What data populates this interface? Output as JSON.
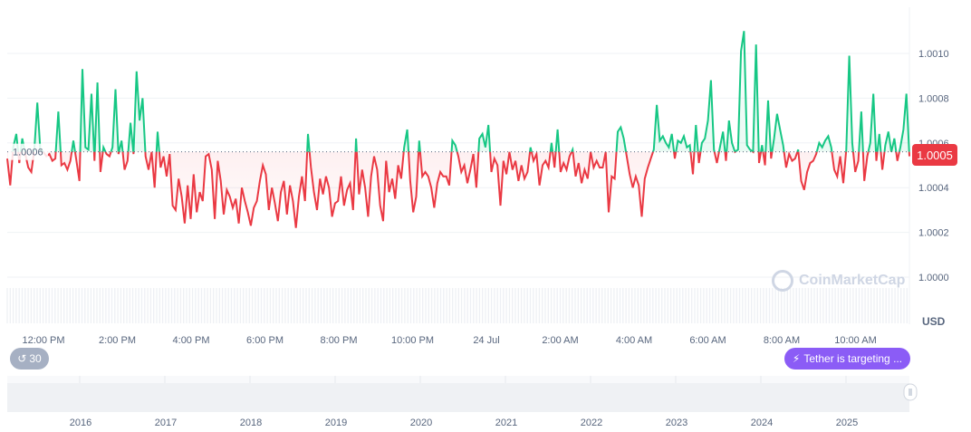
{
  "chart_data": {
    "type": "line",
    "baseline": 1.00056,
    "baseline_label": "1.0006",
    "current_price_label": "1.0005",
    "currency": "USD",
    "ylim": [
      0.99982,
      1.00114
    ],
    "yticks": [
      "1.0000",
      "1.0002",
      "1.0004",
      "1.0006",
      "1.0008",
      "1.0010"
    ],
    "ytick_values": [
      1.0,
      1.0002,
      1.0004,
      1.0006,
      1.0008,
      1.001
    ],
    "xticks": [
      "12:00 PM",
      "2:00 PM",
      "4:00 PM",
      "6:00 PM",
      "8:00 PM",
      "10:00 PM",
      "24 Jul",
      "2:00 AM",
      "4:00 AM",
      "6:00 AM",
      "8:00 AM",
      "10:00 AM"
    ],
    "nav_years": [
      "2016",
      "2017",
      "2018",
      "2019",
      "2020",
      "2021",
      "2022",
      "2023",
      "2024",
      "2025"
    ],
    "grid": true,
    "colors": {
      "up": "#16c784",
      "down": "#ea3943",
      "nav_handle": "#ffffff",
      "badge": "#8b5cf6",
      "history": "#a6b0c3"
    },
    "values": [
      1.00053,
      1.00041,
      1.00058,
      1.00064,
      1.00051,
      1.00062,
      1.00055,
      1.00049,
      1.00047,
      1.00057,
      1.00078,
      1.00057,
      1.00056,
      1.00054,
      1.00055,
      1.00052,
      1.00053,
      1.00074,
      1.0005,
      1.00051,
      1.00048,
      1.00052,
      1.00061,
      1.00052,
      1.00043,
      1.00093,
      1.00058,
      1.00057,
      1.00082,
      1.00052,
      1.00087,
      1.00047,
      1.00058,
      1.00055,
      1.00054,
      1.00058,
      1.00084,
      1.00055,
      1.00061,
      1.00048,
      1.00052,
      1.00069,
      1.00055,
      1.00092,
      1.0007,
      1.0008,
      1.00054,
      1.00048,
      1.00056,
      1.0004,
      1.00065,
      1.00049,
      1.00054,
      1.00045,
      1.00055,
      1.00032,
      1.0003,
      1.00044,
      1.00036,
      1.00024,
      1.00041,
      1.00026,
      1.00046,
      1.00029,
      1.00038,
      1.00034,
      1.00054,
      1.00055,
      1.00048,
      1.00026,
      1.00052,
      1.00043,
      1.00028,
      1.00039,
      1.00036,
      1.00031,
      1.00035,
      1.00024,
      1.0004,
      1.00034,
      1.00029,
      1.00023,
      1.00031,
      1.00034,
      1.00043,
      1.0005,
      1.00046,
      1.0003,
      1.0004,
      1.00033,
      1.00025,
      1.00038,
      1.00043,
      1.00028,
      1.00041,
      1.00034,
      1.00022,
      1.00036,
      1.00045,
      1.00034,
      1.00064,
      1.00049,
      1.00038,
      1.0003,
      1.00044,
      1.00037,
      1.00045,
      1.0004,
      1.00027,
      1.00033,
      1.00034,
      1.00045,
      1.00032,
      1.00039,
      1.00042,
      1.0003,
      1.00062,
      1.00037,
      1.00048,
      1.0004,
      1.00027,
      1.00045,
      1.00054,
      1.00048,
      1.00032,
      1.00025,
      1.00052,
      1.00038,
      1.00044,
      1.00035,
      1.0005,
      1.00044,
      1.00058,
      1.00066,
      1.00043,
      1.00029,
      1.00036,
      1.00061,
      1.00045,
      1.00047,
      1.00045,
      1.0004,
      1.00031,
      1.00042,
      1.00047,
      1.00045,
      1.00045,
      1.00041,
      1.00061,
      1.00059,
      1.00054,
      1.00047,
      1.0005,
      1.00042,
      1.00048,
      1.00055,
      1.0004,
      1.00062,
      1.00064,
      1.00058,
      1.00068,
      1.00047,
      1.00053,
      1.0005,
      1.00032,
      1.00052,
      1.00046,
      1.00056,
      1.00048,
      1.00052,
      1.00043,
      1.0005,
      1.00044,
      1.00047,
      1.00058,
      1.00052,
      1.00055,
      1.00041,
      1.0005,
      1.00052,
      1.00049,
      1.0006,
      1.00049,
      1.00066,
      1.00047,
      1.00051,
      1.00048,
      1.00054,
      1.00057,
      1.00045,
      1.00051,
      1.00042,
      1.00048,
      1.00044,
      1.00056,
      1.00049,
      1.00052,
      1.00049,
      1.00049,
      1.00056,
      1.00029,
      1.00045,
      1.00044,
      1.00065,
      1.00067,
      1.00062,
      1.00054,
      1.00046,
      1.0004,
      1.00045,
      1.00041,
      1.00027,
      1.00044,
      1.00049,
      1.00053,
      1.00057,
      1.00077,
      1.00061,
      1.00063,
      1.0006,
      1.00058,
      1.00064,
      1.00053,
      1.00061,
      1.0006,
      1.00063,
      1.00058,
      1.00059,
      1.00046,
      1.00068,
      1.00051,
      1.0006,
      1.00062,
      1.0007,
      1.00088,
      1.00057,
      1.00051,
      1.00058,
      1.00065,
      1.00052,
      1.0007,
      1.0006,
      1.00056,
      1.00057,
      1.00101,
      1.0011,
      1.00059,
      1.00057,
      1.00056,
      1.00104,
      1.00051,
      1.00059,
      1.0005,
      1.00079,
      1.00053,
      1.00062,
      1.00073,
      1.00066,
      1.00059,
      1.00049,
      1.00055,
      1.00052,
      1.00053,
      1.00057,
      1.00043,
      1.00039,
      1.00047,
      1.00051,
      1.00052,
      1.00055,
      1.0006,
      1.00058,
      1.00061,
      1.00063,
      1.00058,
      1.00048,
      1.00045,
      1.00054,
      1.00042,
      1.00057,
      1.00099,
      1.0006,
      1.00047,
      1.00052,
      1.00074,
      1.00043,
      1.00054,
      1.0006,
      1.00082,
      1.00052,
      1.00064,
      1.00048,
      1.00059,
      1.00065,
      1.00056,
      1.00062,
      1.00052,
      1.00058,
      1.00066,
      1.00082,
      1.00054
    ]
  },
  "watermark": "CoinMarketCap",
  "history_badge": {
    "icon": "history-icon",
    "label": "30"
  },
  "news_badge": {
    "icon": "lightning-icon",
    "label": "Tether is targeting ..."
  }
}
